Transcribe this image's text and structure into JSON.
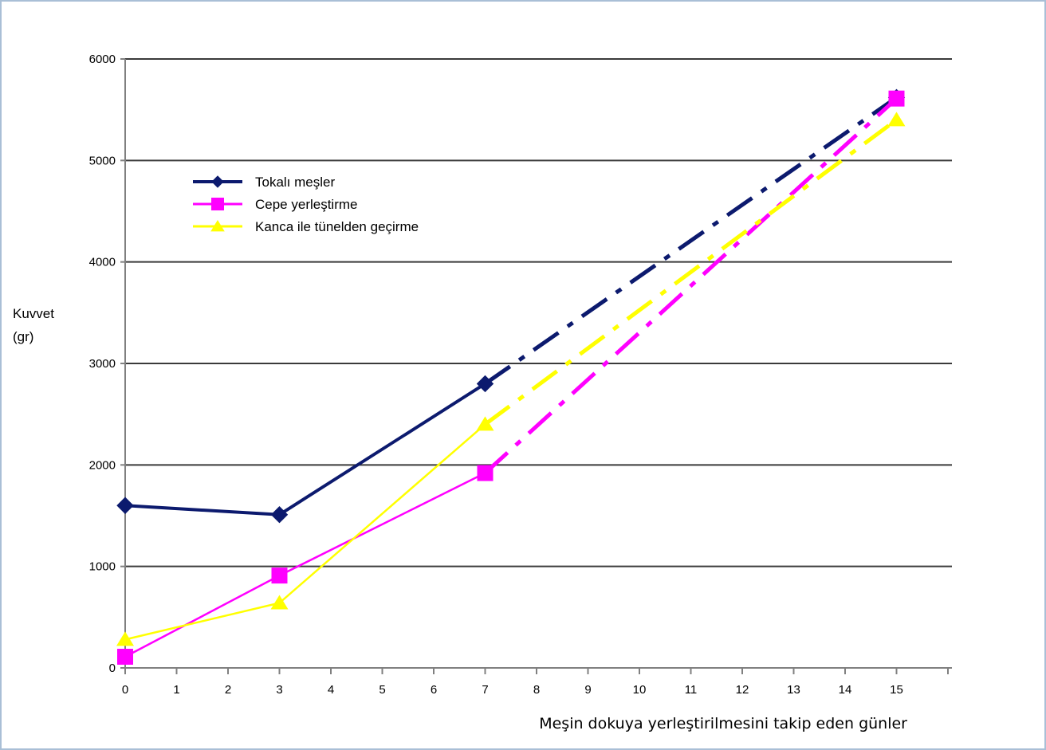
{
  "chart_data": {
    "type": "line",
    "title": "",
    "ylabel_lines": [
      "Kuvvet",
      "(gr)"
    ],
    "xlabel": "Meşin dokuya yerleştirilmesini takip eden günler",
    "x_ticks": [
      0,
      1,
      2,
      3,
      4,
      5,
      6,
      7,
      8,
      9,
      10,
      11,
      12,
      13,
      14,
      15
    ],
    "y_ticks": [
      0,
      1000,
      2000,
      3000,
      4000,
      5000,
      6000
    ],
    "xlim": [
      0,
      16
    ],
    "ylim": [
      0,
      6000
    ],
    "grid": "horizontal",
    "legend_position": "upper-left",
    "series": [
      {
        "name": "Tokalı meşler",
        "color": "#0c1a6e",
        "marker": "diamond",
        "points": [
          [
            0,
            1600
          ],
          [
            3,
            1510
          ],
          [
            7,
            2800
          ]
        ],
        "projection": [
          [
            7,
            2800
          ],
          [
            15,
            5620
          ]
        ]
      },
      {
        "name": "Cepe yerleştirme",
        "color": "#ff00ff",
        "marker": "square",
        "points": [
          [
            0,
            110
          ],
          [
            3,
            910
          ],
          [
            7,
            1920
          ]
        ],
        "projection": [
          [
            7,
            1920
          ],
          [
            15,
            5610
          ]
        ]
      },
      {
        "name": "Kanca ile tünelden geçirme",
        "color": "#ffff00",
        "marker": "triangle",
        "points": [
          [
            0,
            280
          ],
          [
            3,
            640
          ],
          [
            7,
            2400
          ]
        ],
        "projection": [
          [
            7,
            2400
          ],
          [
            15,
            5400
          ]
        ]
      }
    ]
  }
}
